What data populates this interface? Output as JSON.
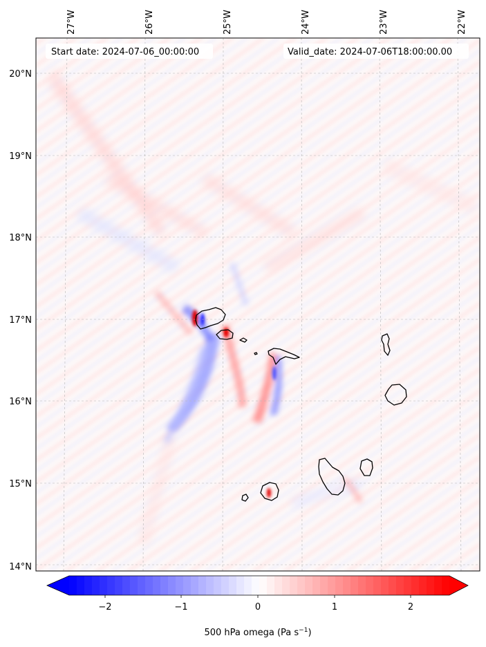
{
  "map": {
    "start_date": "Start date: 2024-07-06_00:00:00",
    "valid_date": "Valid_date: 2024-07-06T18:00:00.00",
    "lon_ticks": [
      "27°W",
      "26°W",
      "25°W",
      "24°W",
      "23°W",
      "22°W"
    ],
    "lat_ticks": [
      "20°N",
      "19°N",
      "18°N",
      "17°N",
      "16°N",
      "15°N",
      "14°N"
    ],
    "islands": [
      "Santo Antão",
      "São Vicente",
      "Santa Luzia",
      "São Nicolau",
      "Sal",
      "Boa Vista",
      "Santiago",
      "Maio",
      "Fogo",
      "Brava"
    ]
  },
  "colorbar": {
    "label_main": "500 hPa omega (Pa s",
    "label_sup": "−1",
    "label_end": ")",
    "ticks": [
      "−2",
      "−1",
      "0",
      "1",
      "2"
    ],
    "min_color": "#0000ff",
    "mid_color": "#ffffff",
    "max_color": "#ff0000"
  }
}
